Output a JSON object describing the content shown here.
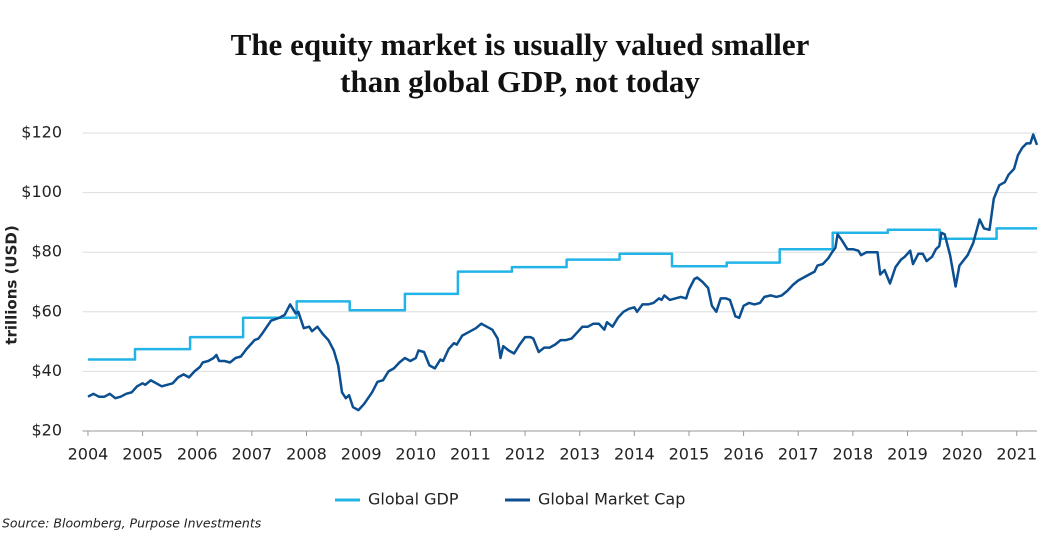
{
  "chart_data": {
    "type": "line",
    "title": "The equity market is usually valued smaller than global GDP, not today",
    "ylabel": "trillions (USD)",
    "source": "Source: Bloomberg, Purpose Investments",
    "xlim": [
      2003.9,
      2021.37
    ],
    "xticks": [
      2004,
      2005,
      2006,
      2007,
      2008,
      2009,
      2010,
      2011,
      2012,
      2013,
      2014,
      2015,
      2016,
      2017,
      2018,
      2019,
      2020,
      2021
    ],
    "ylim": [
      20,
      120
    ],
    "yticks": [
      {
        "value": 20,
        "label": "$20"
      },
      {
        "value": 40,
        "label": "$40"
      },
      {
        "value": 60,
        "label": "$60"
      },
      {
        "value": 80,
        "label": "$80"
      },
      {
        "value": 100,
        "label": "$100"
      },
      {
        "value": 120,
        "label": "$120"
      }
    ],
    "grid": true,
    "legend": "bottom",
    "series": [
      {
        "name": "Global GDP",
        "color": "#22b4e6",
        "x": [
          2004,
          2004.86,
          2004.86,
          2005.87,
          2005.87,
          2006.84,
          2006.84,
          2007.82,
          2007.82,
          2008.79,
          2008.79,
          2009.8,
          2009.8,
          2010.77,
          2010.77,
          2011.76,
          2011.76,
          2012.76,
          2012.76,
          2013.73,
          2013.73,
          2014.69,
          2014.69,
          2015.69,
          2015.69,
          2016.66,
          2016.66,
          2017.63,
          2017.63,
          2018.64,
          2018.64,
          2019.59,
          2019.59,
          2020.63,
          2020.63,
          2021.37
        ],
        "values": [
          44,
          44,
          47.5,
          47.5,
          51.5,
          51.5,
          58,
          58,
          63.5,
          63.5,
          60.5,
          60.5,
          66,
          66,
          73.5,
          73.5,
          75,
          75,
          77.5,
          77.5,
          79.5,
          79.5,
          75.3,
          75.3,
          76.5,
          76.5,
          81,
          81,
          86.5,
          86.5,
          87.5,
          87.5,
          84.5,
          84.5,
          88,
          88
        ]
      },
      {
        "name": "Global Market Cap",
        "color": "#0b4f91",
        "x": [
          2004.0,
          2004.1,
          2004.2,
          2004.3,
          2004.4,
          2004.5,
          2004.6,
          2004.7,
          2004.8,
          2004.9,
          2005.0,
          2005.05,
          2005.15,
          2005.25,
          2005.35,
          2005.45,
          2005.55,
          2005.65,
          2005.75,
          2005.85,
          2005.95,
          2006.05,
          2006.1,
          2006.2,
          2006.3,
          2006.35,
          2006.4,
          2006.5,
          2006.6,
          2006.7,
          2006.8,
          2006.9,
          2007.0,
          2007.05,
          2007.12,
          2007.2,
          2007.35,
          2007.5,
          2007.6,
          2007.7,
          2007.8,
          2007.85,
          2007.95,
          2008.05,
          2008.1,
          2008.2,
          2008.3,
          2008.4,
          2008.5,
          2008.58,
          2008.65,
          2008.72,
          2008.78,
          2008.85,
          2008.95,
          2009.05,
          2009.2,
          2009.3,
          2009.4,
          2009.5,
          2009.6,
          2009.7,
          2009.8,
          2009.9,
          2010.0,
          2010.05,
          2010.15,
          2010.25,
          2010.35,
          2010.45,
          2010.5,
          2010.6,
          2010.7,
          2010.75,
          2010.85,
          2011.0,
          2011.1,
          2011.2,
          2011.3,
          2011.4,
          2011.5,
          2011.55,
          2011.6,
          2011.7,
          2011.8,
          2011.9,
          2012.0,
          2012.1,
          2012.15,
          2012.25,
          2012.35,
          2012.45,
          2012.55,
          2012.65,
          2012.75,
          2012.85,
          2012.95,
          2013.05,
          2013.15,
          2013.25,
          2013.35,
          2013.45,
          2013.5,
          2013.6,
          2013.7,
          2013.8,
          2013.9,
          2014.0,
          2014.05,
          2014.15,
          2014.25,
          2014.35,
          2014.45,
          2014.5,
          2014.55,
          2014.65,
          2014.75,
          2014.85,
          2014.95,
          2015.0,
          2015.1,
          2015.15,
          2015.25,
          2015.35,
          2015.42,
          2015.5,
          2015.58,
          2015.68,
          2015.75,
          2015.85,
          2015.92,
          2016.0,
          2016.1,
          2016.2,
          2016.3,
          2016.38,
          2016.5,
          2016.6,
          2016.7,
          2016.8,
          2016.9,
          2017.0,
          2017.1,
          2017.2,
          2017.3,
          2017.35,
          2017.45,
          2017.55,
          2017.62,
          2017.68,
          2017.72,
          2017.8,
          2017.9,
          2018.0,
          2018.1,
          2018.15,
          2018.25,
          2018.35,
          2018.45,
          2018.5,
          2018.58,
          2018.68,
          2018.78,
          2018.88,
          2018.95,
          2019.05,
          2019.1,
          2019.2,
          2019.28,
          2019.35,
          2019.45,
          2019.52,
          2019.58,
          2019.62,
          2019.68,
          2019.78,
          2019.88,
          2019.95,
          2020.1,
          2020.2,
          2020.32,
          2020.4,
          2020.5,
          2020.58,
          2020.68,
          2020.78,
          2020.85,
          2020.95,
          2021.02,
          2021.1,
          2021.18,
          2021.25,
          2021.3,
          2021.37
        ],
        "values": [
          31.5,
          32.5,
          31.5,
          31.5,
          32.5,
          31,
          31.5,
          32.5,
          33,
          35,
          36,
          35.5,
          37,
          36,
          35,
          35.5,
          36,
          38,
          39,
          38,
          40,
          41.5,
          43,
          43.5,
          44.5,
          45.5,
          43.5,
          43.5,
          43,
          44.5,
          45,
          47.5,
          49.5,
          50.5,
          51,
          53,
          57,
          58,
          59,
          62.5,
          59.5,
          60,
          54.5,
          55,
          53.5,
          55,
          52.5,
          50.5,
          47,
          42,
          33,
          31,
          32,
          28,
          27,
          29,
          33,
          36.5,
          37,
          40,
          41,
          43,
          44.5,
          43.5,
          44.5,
          47,
          46.5,
          42,
          41,
          44,
          43.5,
          47.5,
          49.5,
          49,
          52,
          53.5,
          54.5,
          56,
          55,
          54,
          51,
          44.5,
          48.5,
          47,
          46,
          49,
          51.5,
          51.5,
          51,
          46.5,
          48,
          48,
          49,
          50.5,
          50.5,
          51,
          53,
          55,
          55,
          56,
          56,
          54,
          56.5,
          55,
          58,
          60,
          61,
          61.5,
          60,
          62.5,
          62.5,
          63,
          64.5,
          64,
          65.5,
          64,
          64.5,
          65,
          64.5,
          67.5,
          71,
          71.5,
          70,
          68,
          62,
          60,
          64.5,
          64.5,
          64,
          58.5,
          58,
          62,
          63,
          62.5,
          63,
          65,
          65.5,
          65,
          65.5,
          67,
          69,
          70.5,
          71.5,
          72.5,
          73.5,
          75.5,
          76,
          78,
          80,
          81.5,
          86,
          84,
          81,
          81,
          80.5,
          79,
          80,
          80,
          80,
          72.5,
          74,
          69.5,
          75,
          77.5,
          78.5,
          80.5,
          76,
          79.5,
          79.5,
          77,
          78.5,
          81,
          82,
          86.5,
          86,
          79,
          68.5,
          75.5,
          79,
          83,
          91,
          88,
          87.5,
          98,
          102.5,
          103.5,
          106,
          108,
          112.5,
          115,
          116.5,
          116.5,
          119.5,
          116
        ]
      }
    ]
  }
}
